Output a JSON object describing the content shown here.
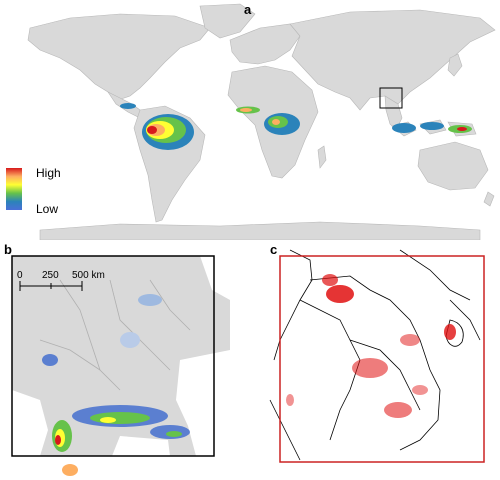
{
  "panels": {
    "a": {
      "label": "a"
    },
    "b": {
      "label": "b"
    },
    "c": {
      "label": "c"
    }
  },
  "legend": {
    "high_label": "High",
    "low_label": "Low",
    "gradient_colors": [
      "#d7191c",
      "#fdae61",
      "#ffff33",
      "#66c24a",
      "#2b83ba",
      "#4a6fd8"
    ]
  },
  "scale_bar": {
    "labels": [
      "0",
      "250",
      "500 km"
    ]
  },
  "colors": {
    "land": "#d9d9d9",
    "ocean": "#ffffff",
    "border": "#b0b0b0",
    "frame_b": "#000000",
    "frame_c": "#cc2222",
    "deforestation": "#e01010"
  }
}
